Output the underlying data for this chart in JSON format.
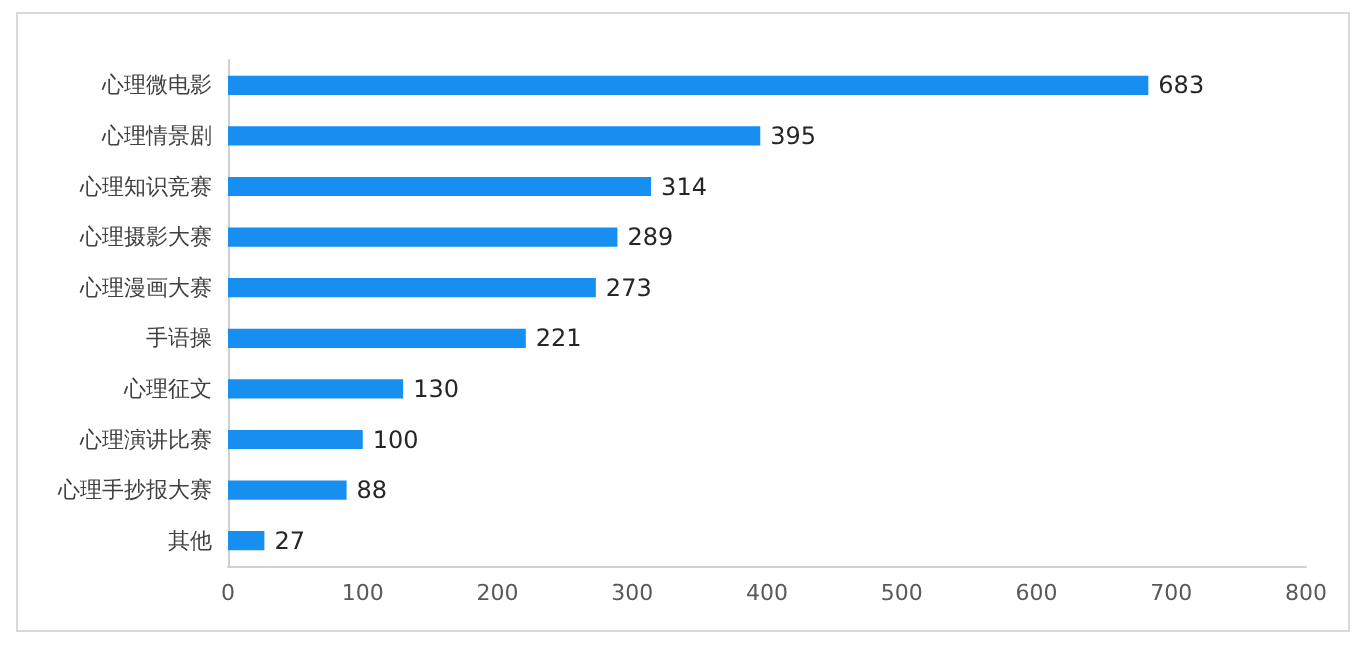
{
  "chart_data": {
    "type": "bar",
    "orientation": "horizontal",
    "categories": [
      "心理微电影",
      "心理情景剧",
      "心理知识竞赛",
      "心理摄影大赛",
      "心理漫画大赛",
      "手语操",
      "心理征文",
      "心理演讲比赛",
      "心理手抄报大赛",
      "其他"
    ],
    "values": [
      683,
      395,
      314,
      289,
      273,
      221,
      130,
      100,
      88,
      27
    ],
    "color": "#168ff0",
    "xlim": [
      0,
      800
    ],
    "xticks": [
      0,
      100,
      200,
      300,
      400,
      500,
      600,
      700,
      800
    ],
    "grid": false,
    "data_labels": true
  }
}
